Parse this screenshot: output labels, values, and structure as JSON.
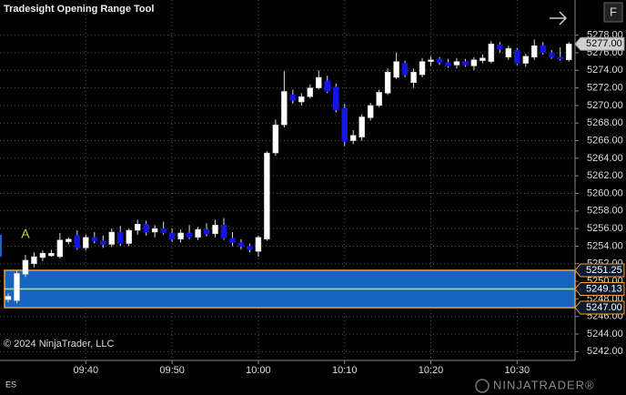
{
  "chart_data": {
    "type": "candlestick",
    "title": "Tradesight Opening Range Tool",
    "copyright": "© 2024 NinjaTrader, LLC",
    "symbol": "ES",
    "logo_text": "NINJATRADER®",
    "button": "F",
    "annotation": "A",
    "categories": [
      null,
      null,
      null,
      null,
      null,
      null,
      null,
      null,
      null,
      "09:40",
      null,
      null,
      null,
      null,
      null,
      null,
      null,
      null,
      null,
      "09:50",
      null,
      null,
      null,
      null,
      null,
      null,
      null,
      null,
      null,
      "10:00",
      null,
      null,
      null,
      null,
      null,
      null,
      null,
      null,
      null,
      "10:10",
      null,
      null,
      null,
      null,
      null,
      null,
      null,
      null,
      null,
      "10:20",
      null,
      null,
      null,
      null,
      null,
      null,
      null,
      null,
      null,
      "10:30",
      null,
      null,
      null,
      null,
      null,
      null
    ],
    "open": [
      5247.9,
      5247.8,
      5250.8,
      5252.0,
      5252.7,
      5252.9,
      5252.8,
      5254.5,
      5255.2,
      5253.8,
      5255.0,
      5254.6,
      5254.2,
      5255.6,
      5254.3,
      5255.8,
      5256.5,
      5255.6,
      5256.0,
      5255.5,
      5254.8,
      5255.5,
      5255.0,
      5255.9,
      5255.4,
      5256.4,
      5254.9,
      5254.4,
      5254.0,
      5253.4,
      5254.8,
      5264.6,
      5267.8,
      5271.2,
      5270.4,
      5271.0,
      5272.0,
      5272.8,
      5272.1,
      5269.7,
      5266.0,
      5266.4,
      5268.6,
      5270.0,
      5271.4,
      5273.2,
      5274.8,
      5272.6,
      5273.5,
      5275.0,
      5275.3,
      5274.9,
      5274.6,
      5275.0,
      5274.5,
      5275.1,
      5275.0,
      5276.9,
      5275.5,
      5276.3,
      5274.8,
      5275.5,
      5276.8,
      5276.0,
      5275.5,
      5275.2
    ],
    "high": [
      5248.6,
      5251.2,
      5253.0,
      5253.3,
      5253.5,
      5253.6,
      5255.5,
      5255.0,
      5255.8,
      5255.3,
      5255.6,
      5255.2,
      5256.0,
      5256.3,
      5256.0,
      5257.0,
      5256.9,
      5256.4,
      5256.8,
      5256.0,
      5255.9,
      5256.4,
      5256.2,
      5256.6,
      5257.0,
      5257.2,
      5255.6,
      5254.8,
      5254.3,
      5255.2,
      5264.8,
      5268.4,
      5273.9,
      5271.8,
      5271.4,
      5272.4,
      5274.0,
      5273.4,
      5272.5,
      5270.2,
      5267.2,
      5269.0,
      5270.3,
      5271.8,
      5274.2,
      5276.0,
      5275.1,
      5274.2,
      5275.4,
      5275.6,
      5275.5,
      5275.3,
      5275.4,
      5275.3,
      5275.5,
      5275.8,
      5277.3,
      5277.2,
      5276.8,
      5276.5,
      5275.9,
      5277.5,
      5277.2,
      5276.3,
      5276.6,
      5277.2
    ],
    "low": [
      5247.6,
      5247.5,
      5250.5,
      5251.6,
      5252.3,
      5252.8,
      5252.6,
      5254.2,
      5253.6,
      5253.5,
      5254.3,
      5253.8,
      5253.9,
      5254.0,
      5254.0,
      5255.3,
      5255.2,
      5255.0,
      5255.3,
      5254.5,
      5254.4,
      5254.8,
      5254.7,
      5255.1,
      5255.0,
      5254.7,
      5254.0,
      5253.6,
      5253.3,
      5252.8,
      5254.6,
      5264.3,
      5267.5,
      5270.2,
      5270.0,
      5270.8,
      5271.8,
      5271.4,
      5269.2,
      5265.4,
      5265.6,
      5266.0,
      5268.3,
      5269.8,
      5271.2,
      5273.0,
      5273.2,
      5272.0,
      5273.2,
      5274.5,
      5274.6,
      5274.3,
      5274.2,
      5274.4,
      5274.0,
      5274.8,
      5274.8,
      5276.0,
      5275.2,
      5274.6,
      5274.4,
      5275.2,
      5275.8,
      5275.3,
      5275.1,
      5275.0
    ],
    "close": [
      5248.3,
      5250.9,
      5252.4,
      5252.8,
      5253.2,
      5253.2,
      5254.7,
      5254.8,
      5253.8,
      5255.0,
      5254.6,
      5254.2,
      5255.6,
      5254.3,
      5255.8,
      5256.5,
      5255.6,
      5256.0,
      5255.5,
      5254.8,
      5255.5,
      5255.0,
      5255.9,
      5255.4,
      5256.4,
      5254.9,
      5254.4,
      5254.0,
      5253.6,
      5255.0,
      5264.6,
      5267.8,
      5271.6,
      5270.6,
      5271.0,
      5272.0,
      5273.2,
      5271.6,
      5269.5,
      5265.9,
      5266.6,
      5268.7,
      5270.0,
      5271.5,
      5273.8,
      5275.0,
      5273.5,
      5273.8,
      5275.0,
      5275.2,
      5274.9,
      5274.5,
      5275.0,
      5274.6,
      5275.2,
      5275.4,
      5277.0,
      5276.4,
      5276.5,
      5274.8,
      5275.6,
      5276.8,
      5276.0,
      5275.5,
      5275.3,
      5277.0
    ],
    "up_color": "#ffffff",
    "down_color": "#1414e6",
    "ylim": [
      5241,
      5282
    ],
    "yticks": [
      {
        "value": 5242,
        "label": "5242.00"
      },
      {
        "value": 5244,
        "label": "5244.00"
      },
      {
        "value": 5246,
        "label": "5246.00"
      },
      {
        "value": 5248,
        "label": "5248.00"
      },
      {
        "value": 5250,
        "label": "5250.00"
      },
      {
        "value": 5252,
        "label": "5252.00"
      },
      {
        "value": 5254,
        "label": "5254.00"
      },
      {
        "value": 5256,
        "label": "5256.00"
      },
      {
        "value": 5258,
        "label": "5258.00"
      },
      {
        "value": 5260,
        "label": "5260.00"
      },
      {
        "value": 5262,
        "label": "5262.00"
      },
      {
        "value": 5264,
        "label": "5264.00"
      },
      {
        "value": 5266,
        "label": "5266.00"
      },
      {
        "value": 5268,
        "label": "5268.00"
      },
      {
        "value": 5270,
        "label": "5270.00"
      },
      {
        "value": 5272,
        "label": "5272.00"
      },
      {
        "value": 5274,
        "label": "5274.00"
      },
      {
        "value": 5276,
        "label": "5276.00"
      },
      {
        "value": 5278,
        "label": "5278.00"
      }
    ],
    "grid": true,
    "opening_range": {
      "values": [
        5251.25,
        5249.13,
        5247.0
      ],
      "value_labels": [
        "5251.25",
        "5249.13",
        "5247.00"
      ],
      "fill": "#1565c0",
      "border": "#f0a030",
      "mid_color": "#e8d040"
    },
    "last_price": {
      "value": 5277.0,
      "label": "5277.00"
    }
  }
}
